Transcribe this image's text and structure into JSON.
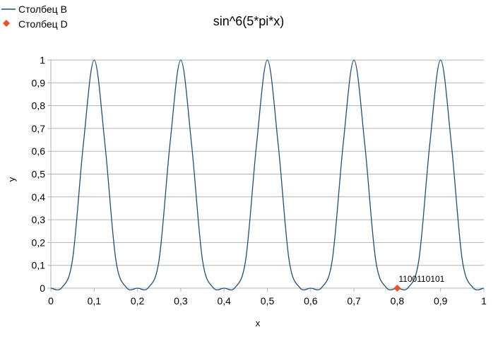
{
  "chart_data": {
    "type": "line",
    "title": "sin^6(5*pi*x)",
    "xlabel": "x",
    "ylabel": "y",
    "xlim": [
      0,
      1
    ],
    "ylim": [
      0,
      1
    ],
    "x_ticks": [
      0,
      0.1,
      0.2,
      0.3,
      0.4,
      0.5,
      0.6,
      0.7,
      0.8,
      0.9,
      1
    ],
    "y_ticks": [
      0,
      0.1,
      0.2,
      0.3,
      0.4,
      0.5,
      0.6,
      0.7,
      0.8,
      0.9,
      1
    ],
    "x_tick_labels": [
      "0",
      "0,1",
      "0,2",
      "0,3",
      "0,4",
      "0,5",
      "0,6",
      "0,7",
      "0,8",
      "0,9",
      "1"
    ],
    "y_tick_labels": [
      "0",
      "0,1",
      "0,2",
      "0,3",
      "0,4",
      "0,5",
      "0,6",
      "0,7",
      "0,8",
      "0,9",
      "1"
    ],
    "grid": "horizontal",
    "legend_position": "top-left",
    "series": [
      {
        "name": "Столбец B",
        "kind": "line",
        "color": "#1f4e79",
        "x": [
          0,
          0.025,
          0.05,
          0.075,
          0.1,
          0.125,
          0.15,
          0.175,
          0.2,
          0.225,
          0.25,
          0.275,
          0.3,
          0.325,
          0.35,
          0.375,
          0.4,
          0.425,
          0.45,
          0.475,
          0.5,
          0.525,
          0.55,
          0.575,
          0.6,
          0.625,
          0.65,
          0.675,
          0.7,
          0.725,
          0.75,
          0.775,
          0.8,
          0.825,
          0.85,
          0.875,
          0.9,
          0.925,
          0.95,
          0.975,
          1
        ],
        "values": [
          0,
          0.002,
          0.125,
          0.63,
          1,
          0.63,
          0.125,
          0.002,
          0,
          0.002,
          0.125,
          0.63,
          1,
          0.63,
          0.125,
          0.002,
          0,
          0.002,
          0.125,
          0.63,
          1,
          0.63,
          0.125,
          0.002,
          0,
          0.002,
          0.125,
          0.63,
          1,
          0.63,
          0.125,
          0.002,
          0,
          0.002,
          0.125,
          0.63,
          1,
          0.63,
          0.125,
          0.002,
          0
        ]
      },
      {
        "name": "Столбец D",
        "kind": "scatter",
        "marker": "diamond",
        "color": "#e8532a",
        "points": [
          {
            "x": 0.8,
            "y": 0,
            "label": "1100110101"
          }
        ]
      }
    ]
  }
}
